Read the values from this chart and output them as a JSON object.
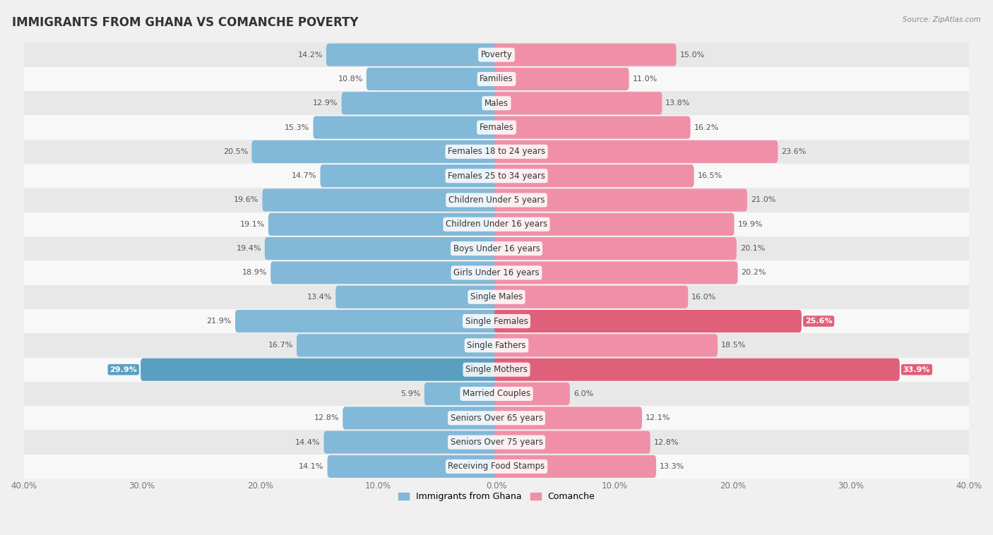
{
  "title": "IMMIGRANTS FROM GHANA VS COMANCHE POVERTY",
  "source": "Source: ZipAtlas.com",
  "categories": [
    "Poverty",
    "Families",
    "Males",
    "Females",
    "Females 18 to 24 years",
    "Females 25 to 34 years",
    "Children Under 5 years",
    "Children Under 16 years",
    "Boys Under 16 years",
    "Girls Under 16 years",
    "Single Males",
    "Single Females",
    "Single Fathers",
    "Single Mothers",
    "Married Couples",
    "Seniors Over 65 years",
    "Seniors Over 75 years",
    "Receiving Food Stamps"
  ],
  "ghana_values": [
    14.2,
    10.8,
    12.9,
    15.3,
    20.5,
    14.7,
    19.6,
    19.1,
    19.4,
    18.9,
    13.4,
    21.9,
    16.7,
    29.9,
    5.9,
    12.8,
    14.4,
    14.1
  ],
  "comanche_values": [
    15.0,
    11.0,
    13.8,
    16.2,
    23.6,
    16.5,
    21.0,
    19.9,
    20.1,
    20.2,
    16.0,
    25.6,
    18.5,
    33.9,
    6.0,
    12.1,
    12.8,
    13.3
  ],
  "ghana_color": "#82b8d8",
  "comanche_color": "#f090a8",
  "ghana_label": "Immigrants from Ghana",
  "comanche_label": "Comanche",
  "xlim": 40.0,
  "bar_height": 0.52,
  "background_color": "#f0f0f0",
  "row_alt_color": "#e8e8e8",
  "row_base_color": "#f8f8f8",
  "title_fontsize": 12,
  "label_fontsize": 8.5,
  "tick_fontsize": 8.5,
  "value_fontsize": 8.0,
  "highlight_cats_ghana": [
    "Single Mothers"
  ],
  "highlight_cats_comanche": [
    "Single Females",
    "Single Mothers"
  ],
  "highlight_color_ghana": "#5a9fc0",
  "highlight_color_comanche": "#e0607a"
}
